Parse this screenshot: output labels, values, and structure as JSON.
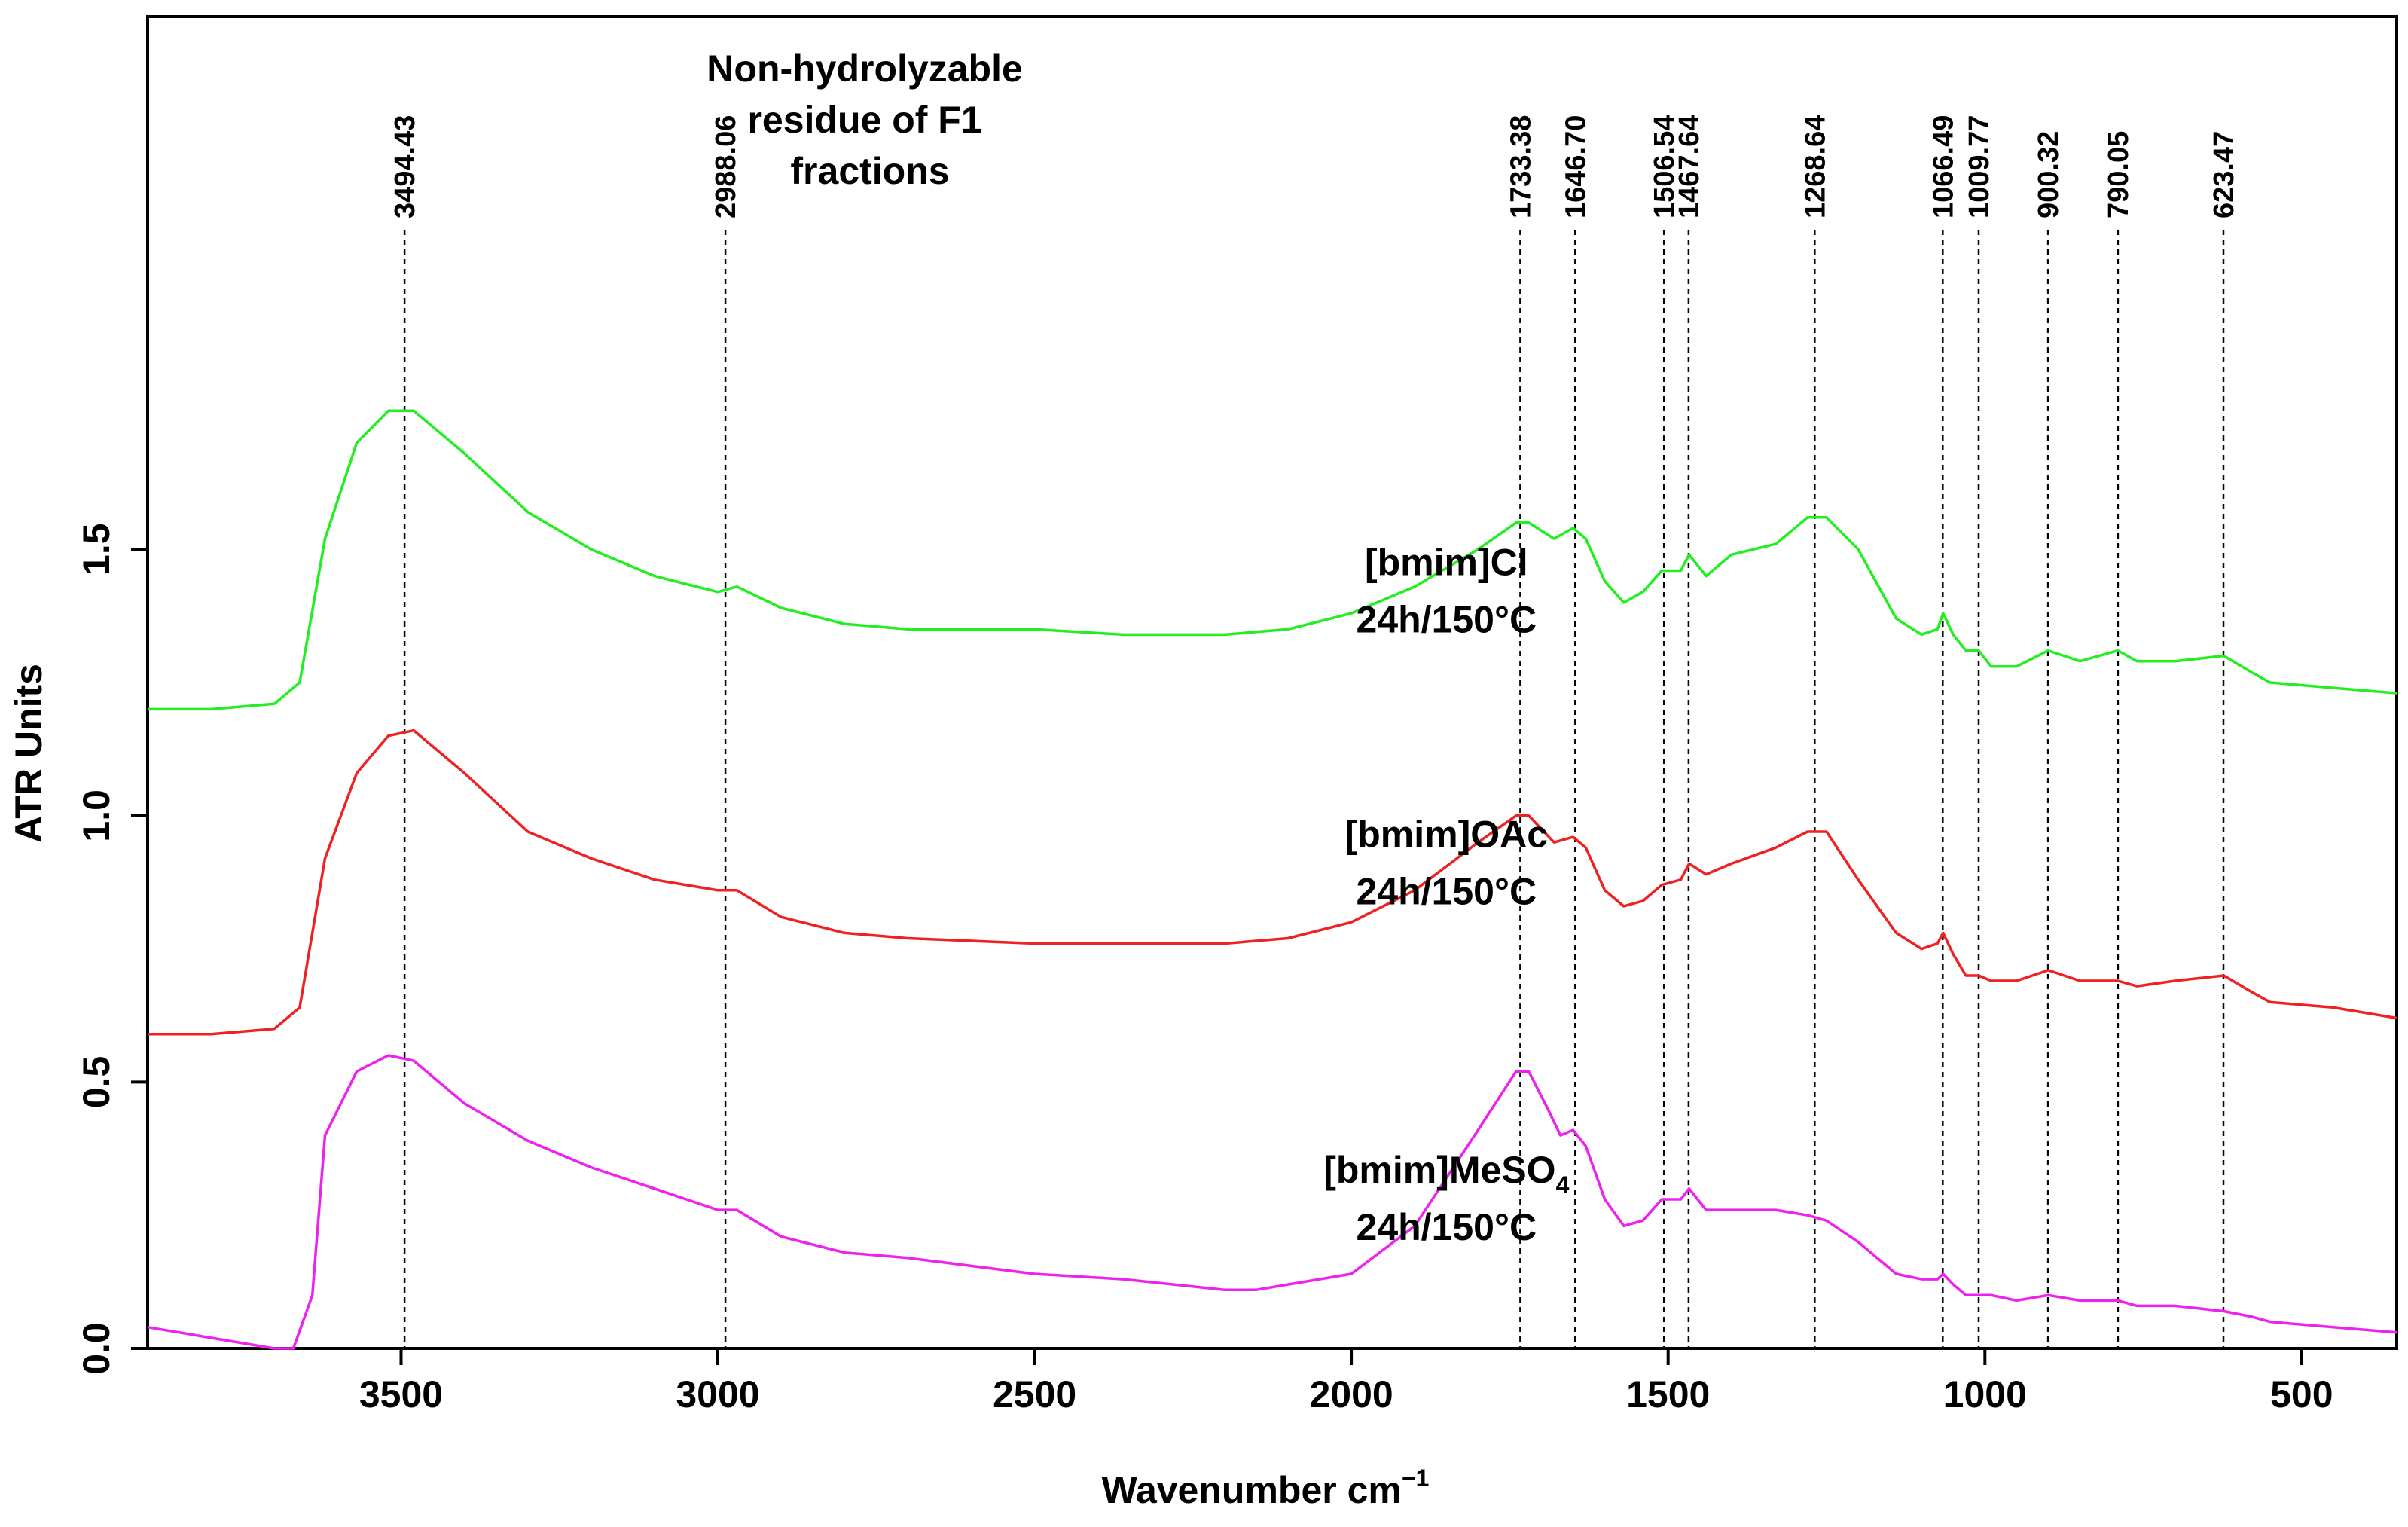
{
  "chart_data": {
    "type": "line",
    "title_lines": [
      "Non-hydrolyzable",
      "residue of F1",
      "fractions"
    ],
    "xlabel": "Wavenumber cm",
    "xlabel_sup": "−1",
    "ylabel": "ATR Units",
    "xlim": [
      3900,
      350
    ],
    "ylim": [
      0.0,
      2.5
    ],
    "x_ticks": [
      3500,
      3000,
      2500,
      2000,
      1500,
      1000,
      500
    ],
    "x_tick_labels": [
      "3500",
      "3000",
      "2500",
      "2000",
      "1500",
      "1000",
      "500"
    ],
    "y_ticks": [
      0.0,
      0.5,
      1.0,
      1.5
    ],
    "y_tick_labels": [
      "0.0",
      "0.5",
      "1.0",
      "1.5"
    ],
    "peaks": [
      {
        "x": 3494.43,
        "label": "3494.43"
      },
      {
        "x": 2988.06,
        "label": "2988.06"
      },
      {
        "x": 1733.38,
        "label": "1733.38"
      },
      {
        "x": 1646.7,
        "label": "1646.70"
      },
      {
        "x": 1506.54,
        "label": "1506.54"
      },
      {
        "x": 1467.64,
        "label": "1467.64"
      },
      {
        "x": 1268.64,
        "label": "1268.64"
      },
      {
        "x": 1066.49,
        "label": "1066.49"
      },
      {
        "x": 1009.77,
        "label": "1009.77"
      },
      {
        "x": 900.32,
        "label": "900.32"
      },
      {
        "x": 790.05,
        "label": "790.05"
      },
      {
        "x": 623.47,
        "label": "623.47"
      }
    ],
    "series": [
      {
        "name": "[bmim]Cl",
        "label_main": "[bmim]Cl",
        "label_sub": "",
        "label_line2": "24h/150°C",
        "label_x": 1850,
        "label_y": 1.44,
        "color": "#22ee22",
        "points": [
          [
            3900,
            1.2
          ],
          [
            3800,
            1.2
          ],
          [
            3700,
            1.21
          ],
          [
            3660,
            1.25
          ],
          [
            3620,
            1.52
          ],
          [
            3570,
            1.7
          ],
          [
            3520,
            1.76
          ],
          [
            3480,
            1.76
          ],
          [
            3400,
            1.68
          ],
          [
            3300,
            1.57
          ],
          [
            3200,
            1.5
          ],
          [
            3100,
            1.45
          ],
          [
            3000,
            1.42
          ],
          [
            2970,
            1.43
          ],
          [
            2900,
            1.39
          ],
          [
            2800,
            1.36
          ],
          [
            2700,
            1.35
          ],
          [
            2500,
            1.35
          ],
          [
            2360,
            1.34
          ],
          [
            2200,
            1.34
          ],
          [
            2100,
            1.35
          ],
          [
            2000,
            1.38
          ],
          [
            1900,
            1.43
          ],
          [
            1800,
            1.5
          ],
          [
            1740,
            1.55
          ],
          [
            1720,
            1.55
          ],
          [
            1680,
            1.52
          ],
          [
            1650,
            1.54
          ],
          [
            1630,
            1.52
          ],
          [
            1600,
            1.44
          ],
          [
            1570,
            1.4
          ],
          [
            1540,
            1.42
          ],
          [
            1510,
            1.46
          ],
          [
            1480,
            1.46
          ],
          [
            1467,
            1.49
          ],
          [
            1440,
            1.45
          ],
          [
            1400,
            1.49
          ],
          [
            1330,
            1.51
          ],
          [
            1280,
            1.56
          ],
          [
            1250,
            1.56
          ],
          [
            1200,
            1.5
          ],
          [
            1140,
            1.37
          ],
          [
            1100,
            1.34
          ],
          [
            1075,
            1.35
          ],
          [
            1066,
            1.38
          ],
          [
            1050,
            1.34
          ],
          [
            1030,
            1.31
          ],
          [
            1010,
            1.31
          ],
          [
            990,
            1.28
          ],
          [
            950,
            1.28
          ],
          [
            900,
            1.31
          ],
          [
            850,
            1.29
          ],
          [
            790,
            1.31
          ],
          [
            760,
            1.29
          ],
          [
            700,
            1.29
          ],
          [
            623,
            1.3
          ],
          [
            580,
            1.27
          ],
          [
            550,
            1.25
          ],
          [
            450,
            1.24
          ],
          [
            350,
            1.23
          ]
        ]
      },
      {
        "name": "[bmim]OAc",
        "label_main": "[bmim]OAc",
        "label_sub": "",
        "label_line2": "24h/150°C",
        "label_x": 1850,
        "label_y": 0.93,
        "color": "#ee2222",
        "points": [
          [
            3900,
            0.59
          ],
          [
            3800,
            0.59
          ],
          [
            3700,
            0.6
          ],
          [
            3660,
            0.64
          ],
          [
            3620,
            0.92
          ],
          [
            3570,
            1.08
          ],
          [
            3520,
            1.15
          ],
          [
            3480,
            1.16
          ],
          [
            3400,
            1.08
          ],
          [
            3300,
            0.97
          ],
          [
            3200,
            0.92
          ],
          [
            3100,
            0.88
          ],
          [
            3000,
            0.86
          ],
          [
            2970,
            0.86
          ],
          [
            2900,
            0.81
          ],
          [
            2800,
            0.78
          ],
          [
            2700,
            0.77
          ],
          [
            2500,
            0.76
          ],
          [
            2360,
            0.76
          ],
          [
            2200,
            0.76
          ],
          [
            2100,
            0.77
          ],
          [
            2000,
            0.8
          ],
          [
            1900,
            0.86
          ],
          [
            1800,
            0.95
          ],
          [
            1740,
            1.0
          ],
          [
            1720,
            1.0
          ],
          [
            1680,
            0.95
          ],
          [
            1650,
            0.96
          ],
          [
            1630,
            0.94
          ],
          [
            1600,
            0.86
          ],
          [
            1570,
            0.83
          ],
          [
            1540,
            0.84
          ],
          [
            1510,
            0.87
          ],
          [
            1480,
            0.88
          ],
          [
            1467,
            0.91
          ],
          [
            1440,
            0.89
          ],
          [
            1400,
            0.91
          ],
          [
            1330,
            0.94
          ],
          [
            1280,
            0.97
          ],
          [
            1250,
            0.97
          ],
          [
            1200,
            0.88
          ],
          [
            1140,
            0.78
          ],
          [
            1100,
            0.75
          ],
          [
            1075,
            0.76
          ],
          [
            1066,
            0.78
          ],
          [
            1050,
            0.74
          ],
          [
            1030,
            0.7
          ],
          [
            1010,
            0.7
          ],
          [
            990,
            0.69
          ],
          [
            950,
            0.69
          ],
          [
            900,
            0.71
          ],
          [
            850,
            0.69
          ],
          [
            790,
            0.69
          ],
          [
            760,
            0.68
          ],
          [
            700,
            0.69
          ],
          [
            623,
            0.7
          ],
          [
            580,
            0.67
          ],
          [
            550,
            0.65
          ],
          [
            450,
            0.64
          ],
          [
            350,
            0.62
          ]
        ]
      },
      {
        "name": "[bmim]MeSO4",
        "label_main": "[bmim]MeSO",
        "label_sub": "4",
        "label_line2": "24h/150°C",
        "label_x": 1850,
        "label_y": 0.3,
        "color": "#ee22ee",
        "points": [
          [
            3900,
            0.04
          ],
          [
            3800,
            0.02
          ],
          [
            3700,
            0.0
          ],
          [
            3670,
            0.0
          ],
          [
            3640,
            0.1
          ],
          [
            3620,
            0.4
          ],
          [
            3570,
            0.52
          ],
          [
            3520,
            0.55
          ],
          [
            3480,
            0.54
          ],
          [
            3400,
            0.46
          ],
          [
            3300,
            0.39
          ],
          [
            3200,
            0.34
          ],
          [
            3100,
            0.3
          ],
          [
            3000,
            0.26
          ],
          [
            2970,
            0.26
          ],
          [
            2900,
            0.21
          ],
          [
            2800,
            0.18
          ],
          [
            2700,
            0.17
          ],
          [
            2500,
            0.14
          ],
          [
            2360,
            0.13
          ],
          [
            2200,
            0.11
          ],
          [
            2150,
            0.11
          ],
          [
            2000,
            0.14
          ],
          [
            1900,
            0.23
          ],
          [
            1800,
            0.41
          ],
          [
            1740,
            0.52
          ],
          [
            1720,
            0.52
          ],
          [
            1690,
            0.45
          ],
          [
            1670,
            0.4
          ],
          [
            1650,
            0.41
          ],
          [
            1630,
            0.38
          ],
          [
            1600,
            0.28
          ],
          [
            1570,
            0.23
          ],
          [
            1540,
            0.24
          ],
          [
            1510,
            0.28
          ],
          [
            1480,
            0.28
          ],
          [
            1467,
            0.3
          ],
          [
            1440,
            0.26
          ],
          [
            1400,
            0.26
          ],
          [
            1330,
            0.26
          ],
          [
            1280,
            0.25
          ],
          [
            1250,
            0.24
          ],
          [
            1200,
            0.2
          ],
          [
            1140,
            0.14
          ],
          [
            1100,
            0.13
          ],
          [
            1075,
            0.13
          ],
          [
            1066,
            0.14
          ],
          [
            1050,
            0.12
          ],
          [
            1030,
            0.1
          ],
          [
            990,
            0.1
          ],
          [
            950,
            0.09
          ],
          [
            900,
            0.1
          ],
          [
            850,
            0.09
          ],
          [
            790,
            0.09
          ],
          [
            760,
            0.08
          ],
          [
            700,
            0.08
          ],
          [
            623,
            0.07
          ],
          [
            580,
            0.06
          ],
          [
            550,
            0.05
          ],
          [
            450,
            0.04
          ],
          [
            350,
            0.03
          ]
        ]
      }
    ]
  }
}
